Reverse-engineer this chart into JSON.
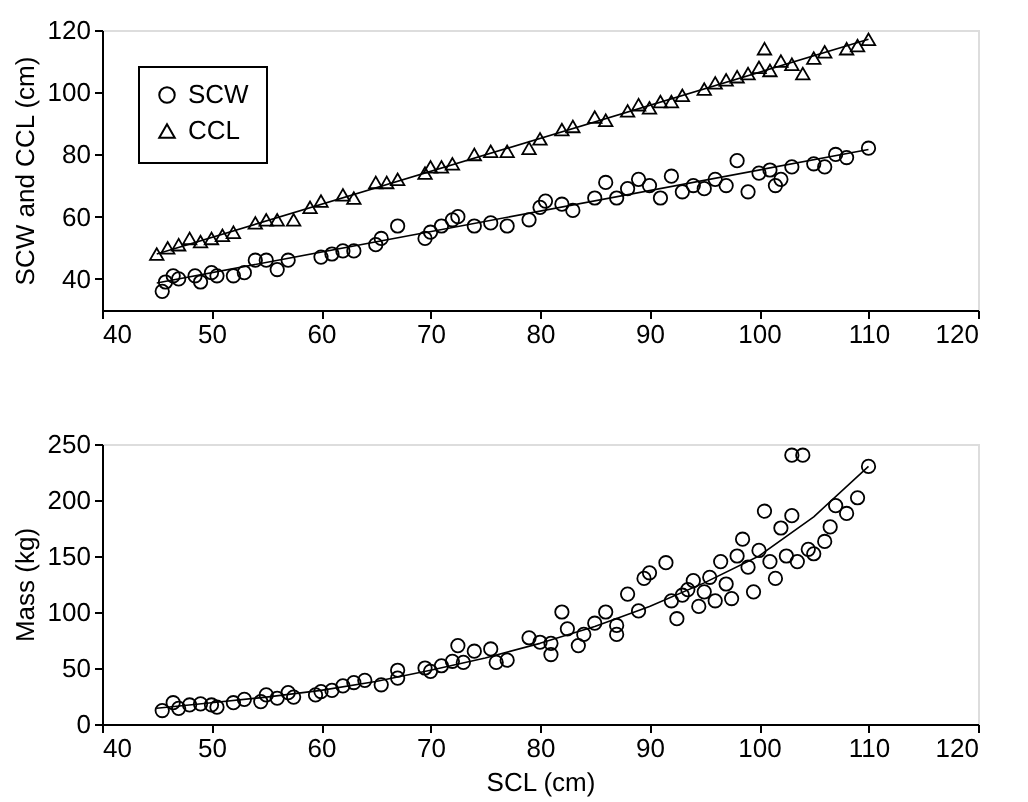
{
  "chart_data": [
    {
      "type": "scatter",
      "ylabel": "SCW and CCL (cm)",
      "xlim": [
        40,
        120
      ],
      "xticks": [
        40,
        50,
        60,
        70,
        80,
        90,
        100,
        110,
        120
      ],
      "ylim": [
        30,
        120
      ],
      "yticks": [
        40,
        60,
        80,
        100,
        120
      ],
      "grid": false,
      "legend": "top left",
      "series": [
        {
          "name": "SCW",
          "marker": "circle",
          "color": "#000000",
          "x": [
            45.5,
            45.8,
            46.5,
            47,
            48.5,
            49,
            50,
            50.5,
            52,
            53,
            54,
            55,
            56,
            57,
            60,
            61,
            62,
            63,
            65,
            65.5,
            67,
            69.5,
            70,
            71,
            72,
            72.5,
            74,
            75.5,
            77,
            79,
            80,
            80.5,
            82,
            83,
            85,
            86,
            87,
            88,
            89,
            90,
            91,
            92,
            93,
            94,
            95,
            96,
            97,
            98,
            99,
            100,
            101,
            101.5,
            102,
            103,
            105,
            106,
            107,
            108,
            110
          ],
          "values": [
            36,
            39,
            41,
            40,
            41,
            39,
            42,
            41,
            41,
            42,
            46,
            46,
            43,
            46,
            47,
            48,
            49,
            49,
            51,
            53,
            57,
            53,
            55,
            57,
            59,
            60,
            57,
            58,
            57,
            59,
            63,
            65,
            64,
            62,
            66,
            71,
            66,
            69,
            72,
            70,
            66,
            73,
            68,
            70,
            69,
            72,
            70,
            78,
            68,
            74,
            75,
            70,
            72,
            76,
            77,
            76,
            80,
            79,
            82
          ]
        },
        {
          "name": "CCL",
          "marker": "triangle",
          "color": "#000000",
          "x": [
            45,
            46,
            47,
            48,
            49,
            50,
            51,
            52,
            54,
            55,
            56,
            57.5,
            59,
            60,
            62,
            63,
            65,
            66,
            67,
            69.5,
            70,
            71,
            72,
            74,
            75.5,
            77,
            79,
            80,
            82,
            83,
            85,
            86,
            88,
            89,
            90,
            91,
            92,
            93,
            95,
            96,
            97,
            98,
            99,
            100,
            100.5,
            101,
            102,
            103,
            104,
            105,
            106,
            108,
            109,
            110
          ],
          "values": [
            48,
            50,
            51,
            53,
            52,
            53,
            54,
            55,
            58,
            59,
            59,
            59,
            63,
            65,
            67,
            66,
            71,
            71,
            72,
            74,
            76,
            76,
            77,
            80,
            81,
            81,
            82,
            85,
            88,
            89,
            92,
            91,
            94,
            96,
            95,
            97,
            97,
            99,
            101,
            103,
            104,
            105,
            106,
            108,
            114,
            107,
            110,
            109,
            106,
            111,
            113,
            114,
            115,
            117
          ]
        },
        {
          "type": "line",
          "color": "#000000",
          "x": [
            45,
            110
          ],
          "values": [
            38.7,
            81.6
          ]
        },
        {
          "type": "line",
          "color": "#000000",
          "x": [
            45,
            110
          ],
          "values": [
            48,
            117
          ]
        }
      ]
    },
    {
      "type": "scatter",
      "xlabel": "SCL (cm)",
      "ylabel": "Mass (kg)",
      "xlim": [
        40,
        120
      ],
      "xticks": [
        40,
        50,
        60,
        70,
        80,
        90,
        100,
        110,
        120
      ],
      "ylim": [
        0,
        250
      ],
      "yticks": [
        0,
        50,
        100,
        150,
        200,
        250
      ],
      "grid": false,
      "series": [
        {
          "marker": "circle",
          "color": "#000000",
          "x": [
            45.5,
            46.5,
            47,
            48,
            49,
            50,
            50.5,
            52,
            53,
            54.5,
            55,
            56,
            57,
            57.5,
            59.5,
            60,
            61,
            62,
            63,
            64,
            65.5,
            67,
            67,
            69.5,
            70,
            71,
            72,
            72.5,
            73,
            74,
            75.5,
            76,
            77,
            79,
            80,
            81,
            81,
            82,
            82.5,
            83.5,
            84,
            85,
            86,
            87,
            87,
            88,
            89,
            89.5,
            90,
            91.5,
            92,
            92.5,
            93,
            93.5,
            94,
            94.5,
            95,
            95.5,
            96,
            96.5,
            97,
            97.5,
            98,
            98.5,
            99,
            99.5,
            100,
            100.5,
            101,
            101.5,
            102,
            102.5,
            103,
            103,
            103.5,
            104,
            104.5,
            105,
            106,
            106.5,
            107,
            108,
            109,
            110
          ],
          "values": [
            12,
            19,
            14,
            17,
            18,
            17,
            15,
            19,
            22,
            20,
            26,
            23,
            28,
            24,
            26,
            29,
            30,
            34,
            37,
            39,
            35,
            48,
            41,
            50,
            47,
            52,
            56,
            70,
            55,
            65,
            67,
            55,
            57,
            77,
            73,
            72,
            62,
            100,
            85,
            70,
            80,
            90,
            100,
            80,
            88,
            116,
            101,
            130,
            135,
            144,
            110,
            94,
            115,
            120,
            128,
            105,
            118,
            131,
            110,
            145,
            125,
            112,
            150,
            165,
            140,
            118,
            155,
            190,
            145,
            130,
            175,
            150,
            186,
            240,
            145,
            240,
            156,
            152,
            163,
            176,
            195,
            188,
            202,
            230
          ]
        },
        {
          "type": "line",
          "color": "#000000",
          "x": [
            45,
            50,
            55,
            60,
            65,
            70,
            75,
            80,
            85,
            90,
            95,
            100,
            105,
            110
          ],
          "values": [
            14,
            19,
            24,
            30,
            38,
            48,
            59,
            72,
            87,
            105,
            126,
            150,
            185,
            230
          ]
        }
      ]
    }
  ]
}
